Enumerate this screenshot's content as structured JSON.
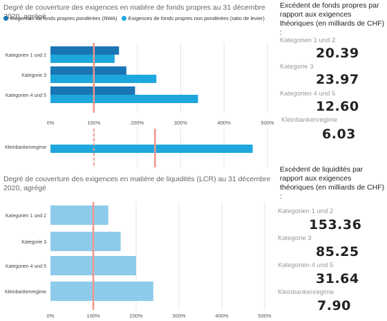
{
  "chart_data": [
    {
      "type": "bar",
      "title": "Degré de couverture des exigences en matière de fonds propres au 31 décembre 2020, agrégé",
      "categories": [
        "Kategorien 1 und 2",
        "Kategorie 3",
        "Kategorien 4 und 5"
      ],
      "series": [
        {
          "name": "Exigences de fonds propres pondérées (RWA)",
          "values": [
            158,
            175,
            195
          ]
        },
        {
          "name": "Exigences de fonds propres non pondérées (ratio de levier)",
          "values": [
            148,
            244,
            340
          ]
        }
      ],
      "xlim": [
        0,
        500
      ],
      "xticks": [
        "0%",
        "100%",
        "200%",
        "300%",
        "400%",
        "500%"
      ],
      "reference_line": 100,
      "sub_panel": {
        "categories": [
          "Kleinbankenregime"
        ],
        "values": [
          466
        ],
        "reference_lines": [
          100,
          241
        ]
      },
      "colors": {
        "rwa": "#1a75b5",
        "leverage": "#1ea7dd",
        "reference": "#f2958a"
      }
    },
    {
      "type": "bar",
      "title": "Degré de couverture des exigences en matière de liquidités (LCR) au 31 décembre 2020, agrégé",
      "categories": [
        "Kategorien 1 und 2",
        "Kategorie 3",
        "Kategorien 4 und 5",
        "Kleinbankenregime"
      ],
      "values": [
        135,
        164,
        200,
        240
      ],
      "xlim": [
        0,
        500
      ],
      "xticks": [
        "0%",
        "100%",
        "200%",
        "300%",
        "400%",
        "500%"
      ],
      "reference_line": 100,
      "colors": {
        "bar": "#8ecbeb",
        "reference": "#f2958a"
      }
    }
  ],
  "capital_surplus": {
    "title": "Excédent de fonds propres par rapport aux exigences théoriques (en milliards de CHF) :",
    "items": [
      {
        "label": "Kategorien 1 und 2",
        "value": "20.39"
      },
      {
        "label": "Kategorie 3",
        "value": "23.97"
      },
      {
        "label": "Kategorien 4 und 5",
        "value": "12.60"
      },
      {
        "label": "Kleinbankenregime",
        "value": "6.03"
      }
    ]
  },
  "liquidity_surplus": {
    "title": "Excédent de liquidités par rapport aux exigences théoriques (en milliards de CHF) :",
    "items": [
      {
        "label": "Kategorien 1 und 2",
        "value": "153.36"
      },
      {
        "label": "Kategorie 3",
        "value": "85.25"
      },
      {
        "label": "Kategorien 4 und 5",
        "value": "31.64"
      },
      {
        "label": "Kleinbankenregime",
        "value": "7.90"
      }
    ]
  }
}
